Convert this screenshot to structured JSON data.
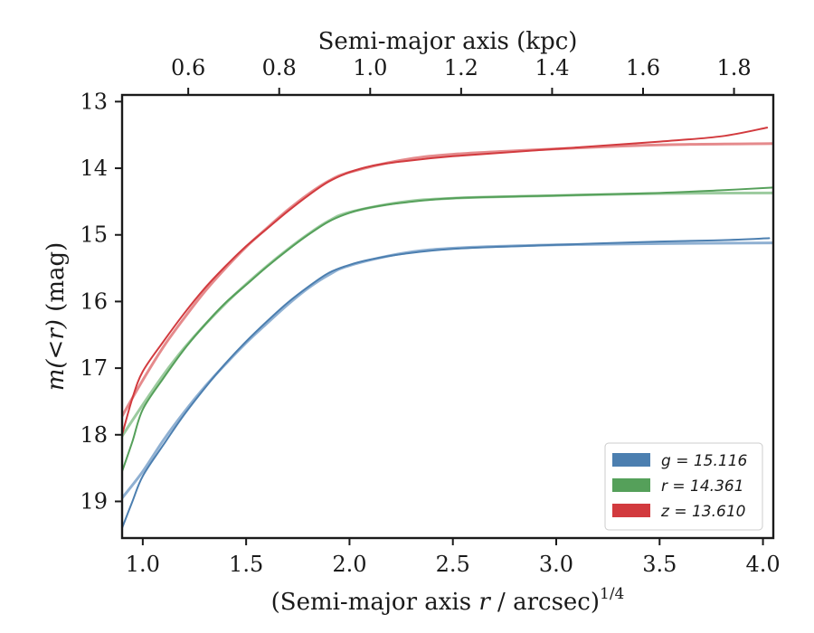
{
  "chart_data": {
    "type": "line",
    "xlabel_prefix": "(Semi-major axis ",
    "xlabel_var": "r",
    "xlabel_suffix": " / arcsec)",
    "xlabel_exponent": "1/4",
    "top_xlabel": "Semi-major axis (kpc)",
    "ylabel_math": "m(<r)",
    "ylabel_unit": " (mag)",
    "xlim": [
      0.9,
      4.05
    ],
    "ylim": [
      19.55,
      12.9
    ],
    "y_inverted": true,
    "x_ticks": [
      "1.0",
      "1.5",
      "2.0",
      "2.5",
      "3.0",
      "3.5",
      "4.0"
    ],
    "x_tick_values": [
      1.0,
      1.5,
      2.0,
      2.5,
      3.0,
      3.5,
      4.0
    ],
    "y_ticks": [
      "13",
      "14",
      "15",
      "16",
      "17",
      "18",
      "19"
    ],
    "y_tick_values": [
      13,
      14,
      15,
      16,
      17,
      18,
      19
    ],
    "top_ticks": [
      "0.6",
      "0.8",
      "1.0",
      "1.2",
      "1.4",
      "1.6",
      "1.8"
    ],
    "top_tick_xvalues": [
      1.22,
      1.66,
      2.1,
      2.54,
      2.98,
      3.42,
      3.86
    ],
    "legend_placement": "lower-right",
    "legend": [
      {
        "label": "g = 15.116",
        "color": "#4c7fb0"
      },
      {
        "label": "r = 14.361",
        "color": "#55a05a"
      },
      {
        "label": "z = 13.610",
        "color": "#d23a3e"
      }
    ],
    "series": [
      {
        "band": "g",
        "color": "#4c7fb0",
        "color_light": "#8fb0d2",
        "data": [
          [
            0.9,
            19.4
          ],
          [
            0.95,
            19.0
          ],
          [
            1.0,
            18.62
          ],
          [
            1.1,
            18.15
          ],
          [
            1.2,
            17.7
          ],
          [
            1.3,
            17.3
          ],
          [
            1.4,
            16.93
          ],
          [
            1.5,
            16.6
          ],
          [
            1.6,
            16.3
          ],
          [
            1.7,
            16.02
          ],
          [
            1.8,
            15.78
          ],
          [
            1.9,
            15.57
          ],
          [
            2.0,
            15.45
          ],
          [
            2.1,
            15.37
          ],
          [
            2.25,
            15.29
          ],
          [
            2.5,
            15.21
          ],
          [
            3.0,
            15.15
          ],
          [
            3.5,
            15.1
          ],
          [
            3.8,
            15.08
          ],
          [
            4.03,
            15.05
          ]
        ],
        "model": [
          [
            0.9,
            18.95
          ],
          [
            1.0,
            18.55
          ],
          [
            1.1,
            18.08
          ],
          [
            1.2,
            17.66
          ],
          [
            1.3,
            17.28
          ],
          [
            1.4,
            16.94
          ],
          [
            1.5,
            16.62
          ],
          [
            1.6,
            16.33
          ],
          [
            1.7,
            16.05
          ],
          [
            1.8,
            15.8
          ],
          [
            1.9,
            15.6
          ],
          [
            2.0,
            15.46
          ],
          [
            2.25,
            15.28
          ],
          [
            2.5,
            15.2
          ],
          [
            3.0,
            15.15
          ],
          [
            3.5,
            15.13
          ],
          [
            4.05,
            15.12
          ]
        ]
      },
      {
        "band": "r",
        "color": "#55a05a",
        "color_light": "#9ccb9f",
        "data": [
          [
            0.9,
            18.55
          ],
          [
            0.95,
            18.1
          ],
          [
            1.0,
            17.62
          ],
          [
            1.1,
            17.15
          ],
          [
            1.2,
            16.72
          ],
          [
            1.3,
            16.35
          ],
          [
            1.4,
            16.02
          ],
          [
            1.5,
            15.75
          ],
          [
            1.6,
            15.48
          ],
          [
            1.7,
            15.23
          ],
          [
            1.8,
            15.0
          ],
          [
            1.9,
            14.8
          ],
          [
            2.0,
            14.67
          ],
          [
            2.1,
            14.59
          ],
          [
            2.25,
            14.52
          ],
          [
            2.5,
            14.45
          ],
          [
            3.0,
            14.41
          ],
          [
            3.5,
            14.37
          ],
          [
            3.8,
            14.33
          ],
          [
            4.05,
            14.29
          ]
        ],
        "model": [
          [
            0.9,
            18.02
          ],
          [
            1.0,
            17.55
          ],
          [
            1.1,
            17.1
          ],
          [
            1.2,
            16.7
          ],
          [
            1.3,
            16.35
          ],
          [
            1.4,
            16.03
          ],
          [
            1.5,
            15.74
          ],
          [
            1.6,
            15.47
          ],
          [
            1.7,
            15.22
          ],
          [
            1.8,
            14.99
          ],
          [
            1.9,
            14.79
          ],
          [
            2.0,
            14.66
          ],
          [
            2.25,
            14.51
          ],
          [
            2.5,
            14.45
          ],
          [
            3.0,
            14.41
          ],
          [
            3.5,
            14.38
          ],
          [
            4.05,
            14.37
          ]
        ]
      },
      {
        "band": "z",
        "color": "#d23a3e",
        "color_light": "#e58a8c",
        "data": [
          [
            0.9,
            18.0
          ],
          [
            0.95,
            17.45
          ],
          [
            1.0,
            17.05
          ],
          [
            1.1,
            16.6
          ],
          [
            1.2,
            16.18
          ],
          [
            1.3,
            15.8
          ],
          [
            1.4,
            15.47
          ],
          [
            1.5,
            15.17
          ],
          [
            1.6,
            14.91
          ],
          [
            1.7,
            14.65
          ],
          [
            1.8,
            14.41
          ],
          [
            1.9,
            14.2
          ],
          [
            2.0,
            14.06
          ],
          [
            2.1,
            13.97
          ],
          [
            2.25,
            13.9
          ],
          [
            2.5,
            13.82
          ],
          [
            3.0,
            13.71
          ],
          [
            3.5,
            13.6
          ],
          [
            3.8,
            13.52
          ],
          [
            4.02,
            13.39
          ]
        ],
        "model": [
          [
            0.9,
            17.72
          ],
          [
            1.0,
            17.18
          ],
          [
            1.1,
            16.68
          ],
          [
            1.2,
            16.25
          ],
          [
            1.3,
            15.85
          ],
          [
            1.4,
            15.5
          ],
          [
            1.5,
            15.18
          ],
          [
            1.6,
            14.9
          ],
          [
            1.7,
            14.63
          ],
          [
            1.8,
            14.39
          ],
          [
            1.9,
            14.19
          ],
          [
            2.0,
            14.06
          ],
          [
            2.25,
            13.88
          ],
          [
            2.5,
            13.79
          ],
          [
            3.0,
            13.71
          ],
          [
            3.5,
            13.65
          ],
          [
            4.05,
            13.63
          ]
        ]
      }
    ]
  }
}
